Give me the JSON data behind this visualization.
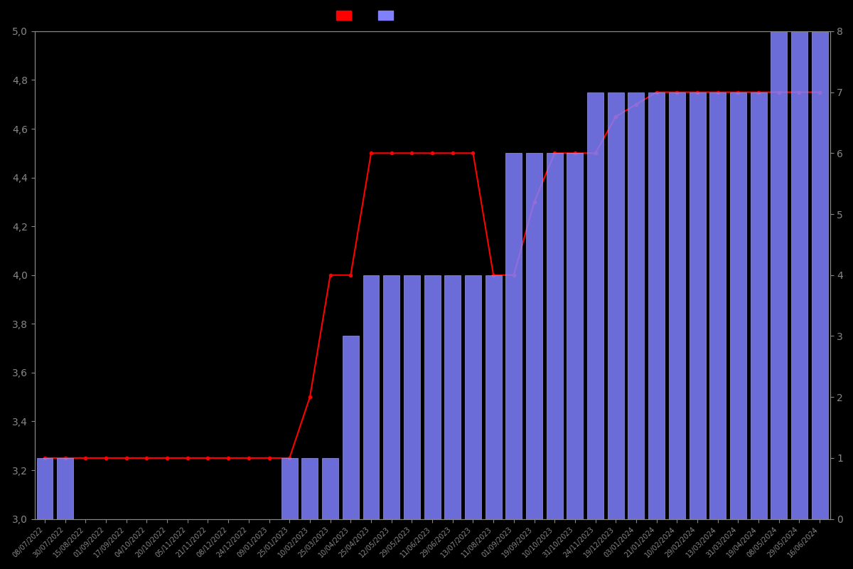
{
  "background_color": "#000000",
  "bar_color": "#8080ff",
  "bar_edge_color": "#aaaaff",
  "line_color": "#ff0000",
  "line_marker": "o",
  "line_marker_size": 3,
  "left_ylim": [
    3.0,
    5.0
  ],
  "right_ylim": [
    0,
    8
  ],
  "left_yticks": [
    3.0,
    3.2,
    3.4,
    3.6,
    3.8,
    4.0,
    4.2,
    4.4,
    4.6,
    4.8,
    5.0
  ],
  "right_yticks": [
    0,
    1,
    2,
    3,
    4,
    5,
    6,
    7,
    8
  ],
  "tick_color": "#888888",
  "text_color": "#888888",
  "dates": [
    "08/07/2022",
    "30/07/2022",
    "15/08/2022",
    "01/09/2022",
    "17/09/2022",
    "04/10/2022",
    "20/10/2022",
    "05/11/2022",
    "21/11/2022",
    "08/12/2022",
    "24/12/2022",
    "09/01/2023",
    "25/01/2023",
    "10/02/2023",
    "25/03/2023",
    "10/04/2023",
    "25/04/2023",
    "12/05/2023",
    "29/05/2023",
    "11/06/2023",
    "29/06/2023",
    "13/07/2023",
    "11/08/2023",
    "01/09/2023",
    "19/09/2023",
    "10/10/2023",
    "31/10/2023",
    "24/11/2023",
    "19/12/2023",
    "03/01/2024",
    "21/01/2024",
    "10/02/2024",
    "29/02/2024",
    "13/03/2024",
    "31/03/2024",
    "19/04/2024",
    "08/05/2024",
    "29/05/2024",
    "16/06/2024"
  ],
  "bar_heights": [
    1,
    1,
    0,
    0,
    0,
    0,
    0,
    0,
    0,
    0,
    0,
    0,
    1,
    1,
    1,
    3,
    4,
    4,
    4,
    4,
    4,
    4,
    4,
    6,
    6,
    6,
    6,
    7,
    7,
    7,
    7,
    7,
    7,
    7,
    7,
    7,
    8,
    8,
    8
  ],
  "line_values": [
    3.25,
    3.25,
    3.25,
    3.25,
    3.25,
    3.25,
    3.25,
    3.25,
    3.25,
    3.25,
    3.25,
    3.25,
    3.25,
    3.5,
    4.0,
    4.0,
    4.5,
    4.5,
    4.5,
    4.5,
    4.5,
    4.5,
    4.0,
    4.0,
    4.3,
    4.5,
    4.5,
    4.5,
    4.65,
    4.7,
    4.75,
    4.75,
    4.75,
    4.75,
    4.75,
    4.75,
    4.75,
    4.75,
    4.75
  ],
  "figsize": [
    12,
    8
  ],
  "dpi": 100
}
